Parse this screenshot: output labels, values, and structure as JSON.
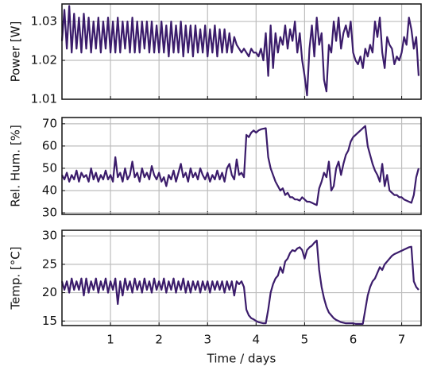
{
  "chart_data": [
    {
      "type": "line",
      "ylabel": "Power [W]",
      "color": "#3b1c6b",
      "xlim": [
        0,
        7.4
      ],
      "xticks": [
        1,
        2,
        3,
        4,
        5,
        6,
        7
      ],
      "ylim": [
        1.01,
        1.0345
      ],
      "yticks": [
        1.01,
        1.02,
        1.03
      ],
      "grid": true,
      "x": [
        0,
        0.05,
        0.1,
        0.15,
        0.2,
        0.25,
        0.3,
        0.35,
        0.4,
        0.45,
        0.5,
        0.55,
        0.6,
        0.65,
        0.7,
        0.75,
        0.8,
        0.85,
        0.9,
        0.95,
        1,
        1.05,
        1.1,
        1.15,
        1.2,
        1.25,
        1.3,
        1.35,
        1.4,
        1.45,
        1.5,
        1.55,
        1.6,
        1.65,
        1.7,
        1.75,
        1.8,
        1.85,
        1.9,
        1.95,
        2,
        2.05,
        2.1,
        2.15,
        2.2,
        2.25,
        2.3,
        2.35,
        2.4,
        2.45,
        2.5,
        2.55,
        2.6,
        2.65,
        2.7,
        2.75,
        2.8,
        2.85,
        2.9,
        2.95,
        3,
        3.05,
        3.1,
        3.15,
        3.2,
        3.25,
        3.3,
        3.35,
        3.4,
        3.45,
        3.5,
        3.55,
        3.6,
        3.65,
        3.7,
        3.75,
        3.8,
        3.85,
        3.9,
        3.95,
        4,
        4.05,
        4.1,
        4.15,
        4.2,
        4.25,
        4.3,
        4.35,
        4.4,
        4.45,
        4.5,
        4.55,
        4.6,
        4.65,
        4.7,
        4.75,
        4.8,
        4.85,
        4.9,
        4.95,
        5,
        5.05,
        5.1,
        5.15,
        5.2,
        5.25,
        5.3,
        5.35,
        5.4,
        5.45,
        5.5,
        5.55,
        5.6,
        5.65,
        5.7,
        5.75,
        5.8,
        5.85,
        5.9,
        5.95,
        6,
        6.05,
        6.1,
        6.15,
        6.2,
        6.25,
        6.3,
        6.35,
        6.4,
        6.45,
        6.5,
        6.55,
        6.6,
        6.65,
        6.7,
        6.75,
        6.8,
        6.85,
        6.9,
        6.95,
        7,
        7.05,
        7.1,
        7.15,
        7.2,
        7.25,
        7.3,
        7.35
      ],
      "values": [
        1.025,
        1.033,
        1.023,
        1.034,
        1.022,
        1.032,
        1.023,
        1.031,
        1.022,
        1.032,
        1.023,
        1.031,
        1.022,
        1.03,
        1.023,
        1.031,
        1.022,
        1.03,
        1.023,
        1.031,
        1.022,
        1.03,
        1.022,
        1.031,
        1.022,
        1.03,
        1.023,
        1.03,
        1.022,
        1.031,
        1.022,
        1.03,
        1.022,
        1.03,
        1.023,
        1.03,
        1.022,
        1.03,
        1.022,
        1.029,
        1.022,
        1.03,
        1.022,
        1.029,
        1.021,
        1.03,
        1.022,
        1.029,
        1.022,
        1.03,
        1.021,
        1.029,
        1.022,
        1.029,
        1.021,
        1.029,
        1.022,
        1.028,
        1.022,
        1.029,
        1.021,
        1.028,
        1.022,
        1.029,
        1.021,
        1.028,
        1.022,
        1.028,
        1.022,
        1.027,
        1.022,
        1.026,
        1.024,
        1.023,
        1.022,
        1.023,
        1.022,
        1.021,
        1.023,
        1.022,
        1.022,
        1.021,
        1.023,
        1.02,
        1.027,
        1.016,
        1.029,
        1.018,
        1.027,
        1.022,
        1.026,
        1.024,
        1.029,
        1.023,
        1.028,
        1.025,
        1.03,
        1.022,
        1.027,
        1.02,
        1.016,
        1.011,
        1.023,
        1.029,
        1.021,
        1.031,
        1.024,
        1.027,
        1.015,
        1.012,
        1.024,
        1.022,
        1.03,
        1.025,
        1.031,
        1.023,
        1.027,
        1.029,
        1.026,
        1.03,
        1.022,
        1.02,
        1.019,
        1.021,
        1.018,
        1.023,
        1.021,
        1.024,
        1.022,
        1.03,
        1.026,
        1.031,
        1.022,
        1.018,
        1.026,
        1.024,
        1.023,
        1.019,
        1.021,
        1.02,
        1.022,
        1.026,
        1.024,
        1.031,
        1.028,
        1.023,
        1.026,
        1.016
      ]
    },
    {
      "type": "line",
      "ylabel": "Rel. Hum. [%]",
      "color": "#3b1c6b",
      "xlim": [
        0,
        7.4
      ],
      "xticks": [
        1,
        2,
        3,
        4,
        5,
        6,
        7
      ],
      "ylim": [
        29.3,
        72.8
      ],
      "yticks": [
        30,
        40,
        50,
        60,
        70
      ],
      "grid": true,
      "x": [
        0,
        0.05,
        0.1,
        0.15,
        0.2,
        0.25,
        0.3,
        0.35,
        0.4,
        0.45,
        0.5,
        0.55,
        0.6,
        0.65,
        0.7,
        0.75,
        0.8,
        0.85,
        0.9,
        0.95,
        1,
        1.05,
        1.1,
        1.15,
        1.2,
        1.25,
        1.3,
        1.35,
        1.4,
        1.45,
        1.5,
        1.55,
        1.6,
        1.65,
        1.7,
        1.75,
        1.8,
        1.85,
        1.9,
        1.95,
        2,
        2.05,
        2.1,
        2.15,
        2.2,
        2.25,
        2.3,
        2.35,
        2.4,
        2.45,
        2.5,
        2.55,
        2.6,
        2.65,
        2.7,
        2.75,
        2.8,
        2.85,
        2.9,
        2.95,
        3,
        3.05,
        3.1,
        3.15,
        3.2,
        3.25,
        3.3,
        3.35,
        3.4,
        3.45,
        3.5,
        3.55,
        3.6,
        3.65,
        3.7,
        3.75,
        3.8,
        3.85,
        3.9,
        3.95,
        4,
        4.05,
        4.1,
        4.15,
        4.2,
        4.25,
        4.3,
        4.35,
        4.4,
        4.45,
        4.5,
        4.55,
        4.6,
        4.65,
        4.7,
        4.75,
        4.8,
        4.85,
        4.9,
        4.95,
        5,
        5.05,
        5.1,
        5.15,
        5.2,
        5.25,
        5.3,
        5.35,
        5.4,
        5.45,
        5.5,
        5.55,
        5.6,
        5.65,
        5.7,
        5.75,
        5.8,
        5.85,
        5.9,
        5.95,
        6,
        6.05,
        6.1,
        6.15,
        6.2,
        6.25,
        6.3,
        6.35,
        6.4,
        6.45,
        6.5,
        6.55,
        6.6,
        6.65,
        6.7,
        6.75,
        6.8,
        6.85,
        6.9,
        6.95,
        7,
        7.05,
        7.1,
        7.15,
        7.2,
        7.25,
        7.3,
        7.35
      ],
      "values": [
        47,
        45,
        48,
        44,
        47,
        45,
        49,
        44,
        48,
        46,
        47,
        44,
        50,
        45,
        48,
        44,
        47,
        45,
        49,
        45,
        47,
        44,
        55,
        46,
        48,
        44,
        50,
        45,
        47,
        53,
        46,
        48,
        44,
        50,
        46,
        48,
        45,
        51,
        47,
        45,
        48,
        44,
        46,
        42,
        47,
        45,
        49,
        44,
        48,
        52,
        46,
        48,
        44,
        50,
        46,
        48,
        45,
        50,
        47,
        45,
        48,
        44,
        47,
        45,
        49,
        45,
        48,
        44,
        50,
        52,
        47,
        45,
        54,
        47,
        48,
        46,
        65,
        64,
        66,
        67,
        66,
        67,
        67.5,
        67.8,
        68,
        55,
        50,
        47,
        44,
        42,
        40,
        41,
        38,
        39,
        37,
        37,
        36,
        36,
        35.5,
        37,
        36,
        35,
        35,
        34.5,
        34,
        33.5,
        41,
        44,
        48,
        46,
        53,
        40,
        42,
        50,
        53,
        47,
        52,
        56,
        58,
        62,
        64,
        65,
        66,
        67,
        68,
        69,
        60,
        56,
        52,
        49,
        47,
        44,
        52,
        42,
        47,
        40,
        39,
        38,
        38,
        37,
        37,
        36,
        35.5,
        35,
        34.5,
        38,
        46,
        50
      ]
    },
    {
      "type": "line",
      "ylabel": "Temp. [°C]",
      "xlabel": "Time / days",
      "color": "#3b1c6b",
      "xlim": [
        0,
        7.4
      ],
      "xticks": [
        1,
        2,
        3,
        4,
        5,
        6,
        7
      ],
      "ylim": [
        14.2,
        31
      ],
      "yticks": [
        15,
        20,
        25,
        30
      ],
      "grid": true,
      "x": [
        0,
        0.05,
        0.1,
        0.15,
        0.2,
        0.25,
        0.3,
        0.35,
        0.4,
        0.45,
        0.5,
        0.55,
        0.6,
        0.65,
        0.7,
        0.75,
        0.8,
        0.85,
        0.9,
        0.95,
        1,
        1.05,
        1.1,
        1.15,
        1.2,
        1.25,
        1.3,
        1.35,
        1.4,
        1.45,
        1.5,
        1.55,
        1.6,
        1.65,
        1.7,
        1.75,
        1.8,
        1.85,
        1.9,
        1.95,
        2,
        2.05,
        2.1,
        2.15,
        2.2,
        2.25,
        2.3,
        2.35,
        2.4,
        2.45,
        2.5,
        2.55,
        2.6,
        2.65,
        2.7,
        2.75,
        2.8,
        2.85,
        2.9,
        2.95,
        3,
        3.05,
        3.1,
        3.15,
        3.2,
        3.25,
        3.3,
        3.35,
        3.4,
        3.45,
        3.5,
        3.55,
        3.6,
        3.65,
        3.7,
        3.75,
        3.8,
        3.85,
        3.9,
        3.95,
        4,
        4.05,
        4.1,
        4.15,
        4.2,
        4.25,
        4.3,
        4.35,
        4.4,
        4.45,
        4.5,
        4.55,
        4.6,
        4.65,
        4.7,
        4.75,
        4.8,
        4.85,
        4.9,
        4.95,
        5,
        5.05,
        5.1,
        5.15,
        5.2,
        5.25,
        5.3,
        5.35,
        5.4,
        5.45,
        5.5,
        5.55,
        5.6,
        5.65,
        5.7,
        5.75,
        5.8,
        5.85,
        5.9,
        5.95,
        6,
        6.05,
        6.1,
        6.15,
        6.2,
        6.25,
        6.3,
        6.35,
        6.4,
        6.45,
        6.5,
        6.55,
        6.6,
        6.65,
        6.7,
        6.75,
        6.8,
        6.85,
        6.9,
        6.95,
        7,
        7.05,
        7.1,
        7.15,
        7.2,
        7.25,
        7.3,
        7.35
      ],
      "values": [
        22,
        20.5,
        22,
        20,
        22.5,
        20.5,
        22,
        20.5,
        22.5,
        19.5,
        22.5,
        20,
        22,
        20.5,
        22.5,
        20,
        22,
        20.5,
        22.5,
        20,
        22,
        20.5,
        22.5,
        18,
        22,
        19.5,
        22.5,
        20.5,
        22,
        20,
        22.5,
        20.5,
        22,
        20,
        22.5,
        20.5,
        22,
        20,
        22.5,
        20.5,
        22,
        20.5,
        22.5,
        20,
        22,
        20.5,
        22.5,
        20,
        22,
        20.5,
        22.5,
        20,
        22,
        20,
        22,
        20.5,
        22,
        20,
        22,
        20.5,
        22,
        20,
        22,
        20.5,
        22,
        20.5,
        22,
        20,
        22,
        20.5,
        22,
        19.5,
        22,
        21.5,
        22,
        21,
        17,
        16,
        15.5,
        15.3,
        15,
        14.8,
        14.7,
        14.6,
        14.6,
        17,
        20,
        21.5,
        22.5,
        23,
        24.5,
        23.5,
        25.5,
        26,
        27,
        27.5,
        27.3,
        27.8,
        28,
        27.5,
        26,
        27.5,
        28,
        28.3,
        28.8,
        29.2,
        24,
        21,
        19,
        17.5,
        16.5,
        16,
        15.5,
        15.2,
        15,
        14.8,
        14.7,
        14.6,
        14.6,
        14.6,
        14.6,
        14.5,
        14.5,
        14.5,
        14.5,
        17,
        19.5,
        21,
        22,
        22.5,
        23.5,
        24.5,
        24,
        25,
        25.5,
        26,
        26.5,
        26.8,
        27,
        27.2,
        27.4,
        27.6,
        27.8,
        28,
        28.1,
        22,
        21,
        20.5
      ]
    }
  ]
}
